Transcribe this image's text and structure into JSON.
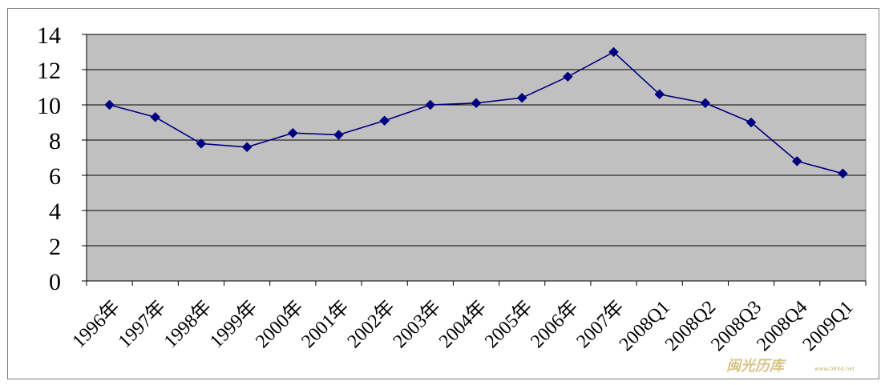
{
  "chart_data": {
    "type": "line",
    "categories": [
      "1996年",
      "1997年",
      "1998年",
      "1999年",
      "2000年",
      "2001年",
      "2002年",
      "2003年",
      "2004年",
      "2005年",
      "2006年",
      "2007年",
      "2008Q1",
      "2008Q2",
      "2008Q3",
      "2008Q4",
      "2009Q1"
    ],
    "series": [
      {
        "values": [
          10.0,
          9.3,
          7.8,
          7.6,
          8.4,
          8.3,
          9.1,
          10.0,
          10.1,
          10.4,
          11.6,
          13.0,
          10.6,
          10.1,
          9.0,
          6.8,
          6.1
        ]
      }
    ],
    "title": "",
    "xlabel": "",
    "ylabel": "",
    "ylim": [
      0,
      14
    ],
    "yticks": [
      0,
      2,
      4,
      6,
      8,
      10,
      12,
      14
    ],
    "grid": true,
    "legend": "none",
    "colors": {
      "line": "#000080",
      "marker": "#000080",
      "plot_background": "#c0c0c0",
      "gridline": "#000000"
    }
  },
  "watermark": {
    "text": "闽光历库",
    "url": "www.0834.net"
  }
}
